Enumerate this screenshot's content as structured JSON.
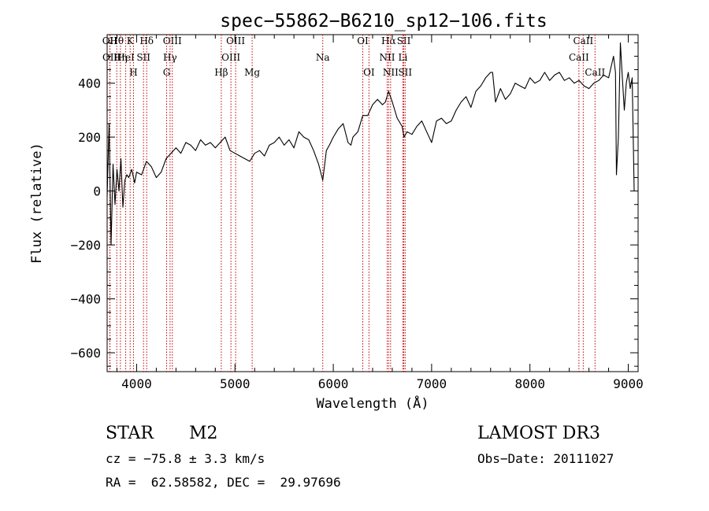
{
  "chart_data": {
    "type": "line",
    "title": "spec−55862−B6210_sp12−106.fits",
    "xlabel": "Wavelength (Å)",
    "ylabel": "Flux (relative)",
    "xlim": [
      3700,
      9100
    ],
    "ylim": [
      -670,
      580
    ],
    "xticks": [
      4000,
      5000,
      6000,
      7000,
      8000,
      9000
    ],
    "xtick_labels": [
      "4000",
      "5000",
      "6000",
      "7000",
      "8000",
      "9000"
    ],
    "yticks": [
      -600,
      -400,
      -200,
      0,
      200,
      400
    ],
    "ytick_labels": [
      "−600",
      "−400",
      "−200",
      "0",
      "200",
      "400"
    ],
    "grid": false,
    "series": [
      {
        "name": "spectrum",
        "x": [
          3700,
          3720,
          3740,
          3760,
          3780,
          3800,
          3820,
          3840,
          3860,
          3880,
          3900,
          3920,
          3950,
          3980,
          4000,
          4050,
          4100,
          4150,
          4200,
          4250,
          4300,
          4350,
          4400,
          4450,
          4500,
          4550,
          4600,
          4650,
          4700,
          4750,
          4800,
          4850,
          4900,
          4950,
          5000,
          5050,
          5100,
          5150,
          5200,
          5250,
          5300,
          5350,
          5400,
          5450,
          5500,
          5550,
          5600,
          5650,
          5700,
          5750,
          5800,
          5850,
          5893,
          5930,
          5960,
          6000,
          6050,
          6100,
          6150,
          6180,
          6200,
          6250,
          6300,
          6350,
          6400,
          6450,
          6500,
          6530,
          6563,
          6600,
          6650,
          6700,
          6720,
          6750,
          6800,
          6850,
          6900,
          6950,
          7000,
          7050,
          7100,
          7150,
          7200,
          7250,
          7300,
          7350,
          7400,
          7450,
          7500,
          7550,
          7600,
          7620,
          7650,
          7700,
          7750,
          7800,
          7850,
          7900,
          7950,
          8000,
          8050,
          8100,
          8150,
          8200,
          8250,
          8300,
          8350,
          8400,
          8450,
          8500,
          8550,
          8600,
          8650,
          8700,
          8750,
          8800,
          8850,
          8870,
          8880,
          8900,
          8920,
          8940,
          8960,
          8980,
          9000,
          9020,
          9040,
          9060
        ],
        "y": [
          -20,
          250,
          -200,
          100,
          -50,
          80,
          0,
          120,
          -60,
          40,
          60,
          50,
          80,
          30,
          70,
          60,
          110,
          90,
          50,
          70,
          120,
          140,
          160,
          140,
          180,
          170,
          150,
          190,
          170,
          180,
          160,
          180,
          200,
          150,
          140,
          130,
          120,
          110,
          140,
          150,
          130,
          170,
          180,
          200,
          170,
          190,
          160,
          220,
          200,
          190,
          150,
          100,
          40,
          150,
          170,
          200,
          230,
          250,
          180,
          170,
          200,
          220,
          280,
          280,
          320,
          340,
          320,
          330,
          370,
          330,
          270,
          240,
          200,
          220,
          210,
          240,
          260,
          220,
          180,
          260,
          270,
          250,
          260,
          300,
          330,
          350,
          310,
          370,
          390,
          420,
          440,
          440,
          330,
          380,
          340,
          360,
          400,
          390,
          380,
          420,
          400,
          410,
          440,
          410,
          430,
          440,
          410,
          420,
          400,
          410,
          390,
          380,
          400,
          410,
          430,
          420,
          500,
          440,
          60,
          200,
          550,
          420,
          300,
          400,
          440,
          380,
          420,
          0
        ]
      }
    ],
    "annotations": [
      {
        "text": "Hθ",
        "x": 3798
      },
      {
        "text": "K",
        "x": 3934
      },
      {
        "text": "Hδ",
        "x": 4102
      },
      {
        "text": "OIII",
        "x": 4363
      },
      {
        "text": "OIII",
        "x": 5007
      },
      {
        "text": "OI",
        "x": 6300
      },
      {
        "text": "Hα",
        "x": 6563
      },
      {
        "text": "SII",
        "x": 6717
      },
      {
        "text": "CaII",
        "x": 8542
      },
      {
        "text": "OII",
        "x": 3727
      },
      {
        "text": "HeI",
        "x": 3889
      },
      {
        "text": "SII",
        "x": 4070
      },
      {
        "text": "Hγ",
        "x": 4340
      },
      {
        "text": "OIII",
        "x": 4959
      },
      {
        "text": "Na",
        "x": 5893
      },
      {
        "text": "NII",
        "x": 6548
      },
      {
        "text": "Li",
        "x": 6708
      },
      {
        "text": "CaII",
        "x": 8498
      },
      {
        "text": "OII",
        "x": 3729
      },
      {
        "text": "Hη",
        "x": 3835
      },
      {
        "text": "H",
        "x": 3968
      },
      {
        "text": "G",
        "x": 4305
      },
      {
        "text": "Hβ",
        "x": 4861
      },
      {
        "text": "Mg",
        "x": 5175
      },
      {
        "text": "OI",
        "x": 6363
      },
      {
        "text": "NII",
        "x": 6583
      },
      {
        "text": "SII",
        "x": 6731
      },
      {
        "text": "CaII",
        "x": 8662
      }
    ],
    "line_color": "#000000",
    "marker_color": "#c00000"
  },
  "info": {
    "object_class": "STAR",
    "subclass": "M2",
    "survey": "LAMOST DR3",
    "redshift_line": "cz = −75.8 ± 3.3 km/s",
    "obs_date": "Obs−Date: 20111027",
    "coords": "RA =  62.58582, DEC =  29.97696"
  }
}
